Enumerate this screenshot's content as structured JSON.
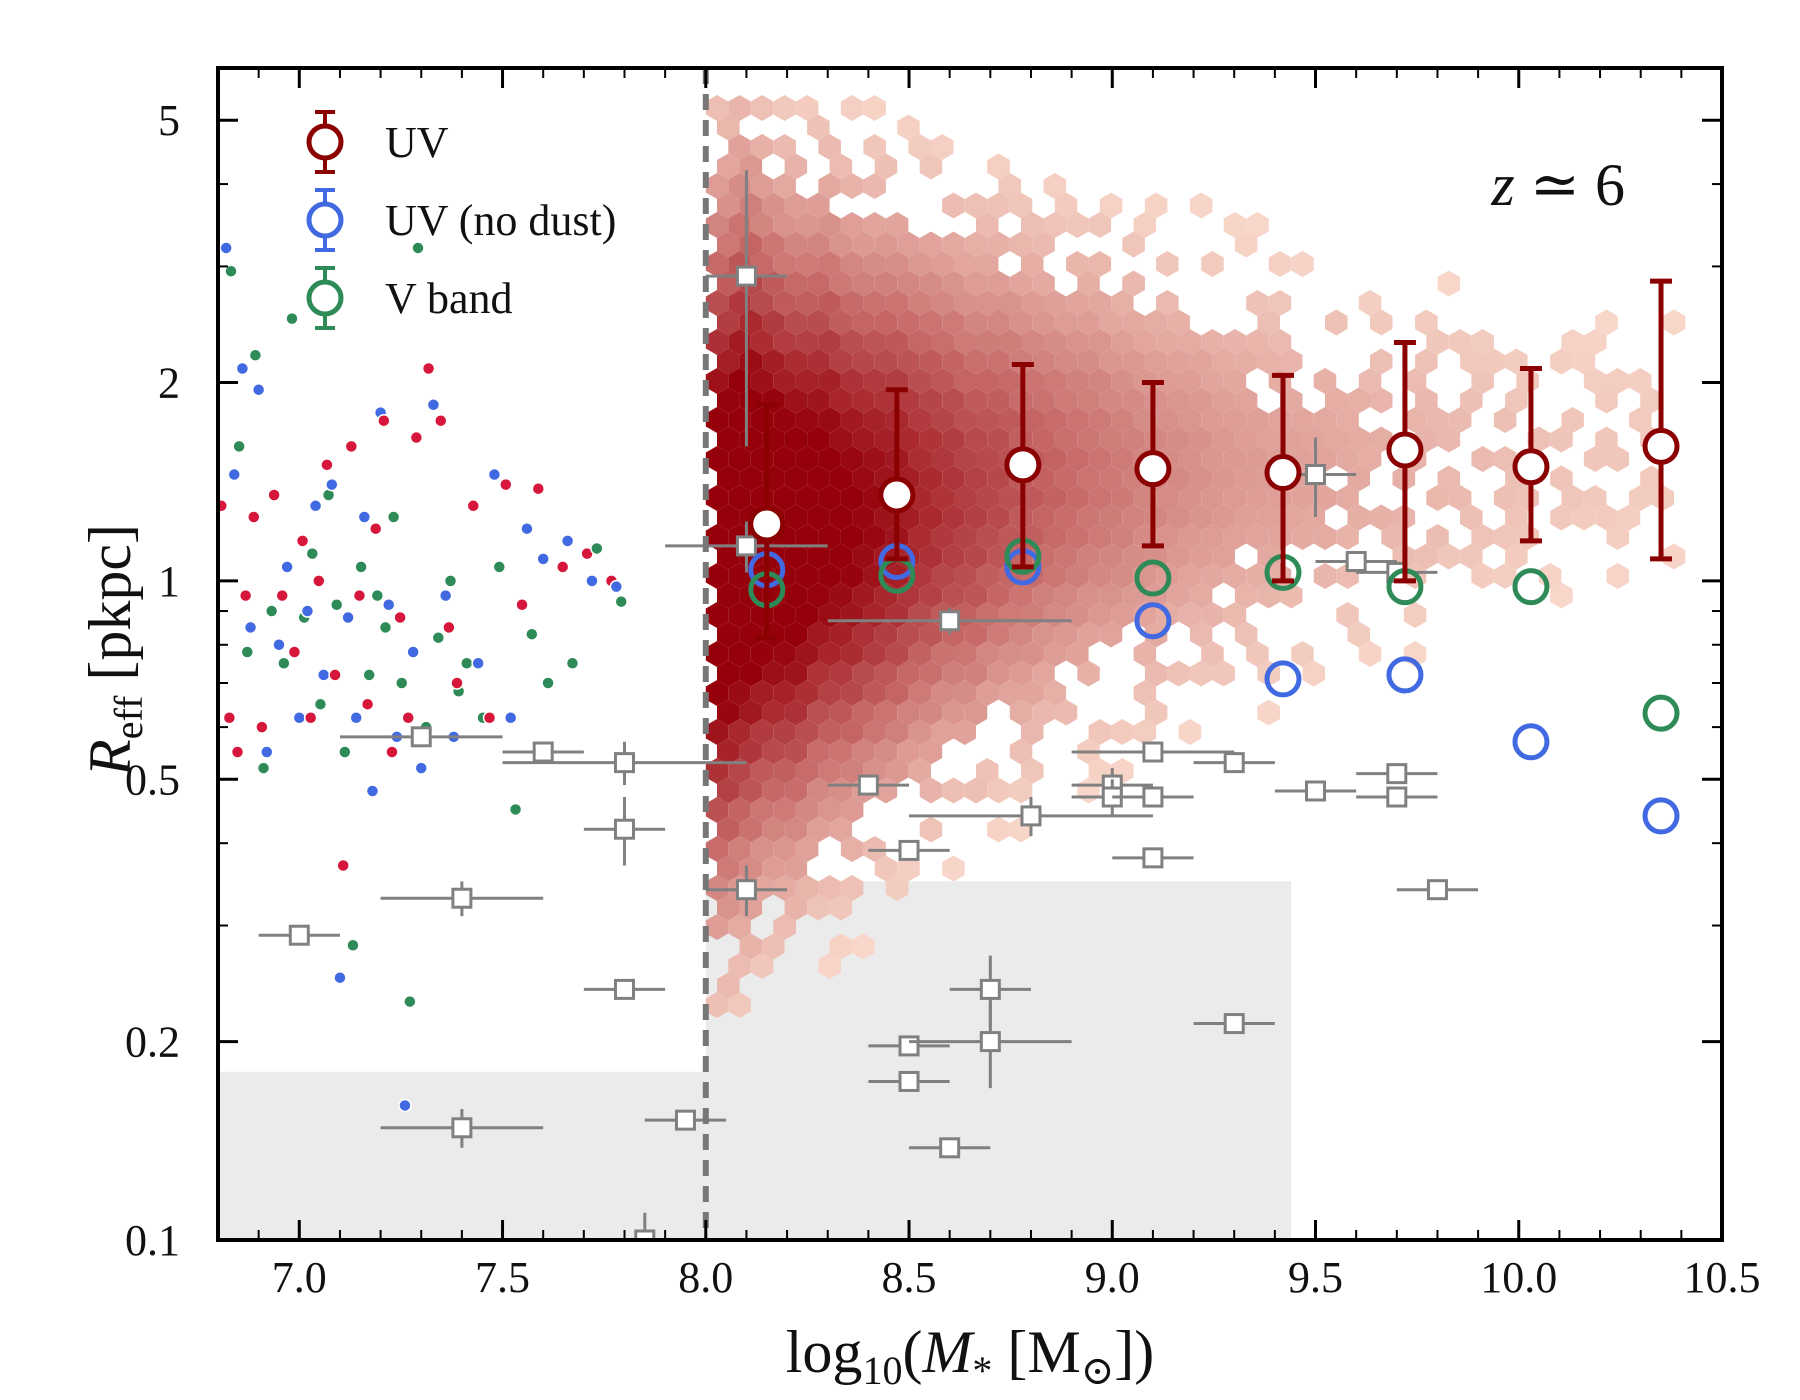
{
  "chart_data": {
    "type": "scatter",
    "xlabel_parts": {
      "pre": "log",
      "sub": "10",
      "mid": "(",
      "var": "M",
      "varsub": "*",
      "unit_open": " [M",
      "unit_sub": "⊙",
      "unit_close": "])"
    },
    "ylabel_parts": {
      "var": "R",
      "sub": "eff",
      "unit": " [pkpc]"
    },
    "annotation_parts": {
      "var": "z",
      "rest": " ≃ 6"
    },
    "xlim": [
      6.8,
      10.5
    ],
    "ylim": [
      0.1,
      6.0
    ],
    "y_scale": "log",
    "x_ticks": [
      "7.0",
      "7.5",
      "8.0",
      "8.5",
      "9.0",
      "9.5",
      "10.0",
      "10.5"
    ],
    "y_ticks": [
      "0.1",
      "0.2",
      "0.5",
      "1",
      "2",
      "5"
    ],
    "x_tick_values": [
      7.0,
      7.5,
      8.0,
      8.5,
      9.0,
      9.5,
      10.0,
      10.5
    ],
    "y_tick_values": [
      0.1,
      0.2,
      0.5,
      1,
      2,
      5
    ],
    "mass_cut": 8.0,
    "legend_position": "top-left",
    "colors": {
      "uv": "#8b0000",
      "uv_nodust": "#4169e1",
      "vband": "#2e8b57",
      "obs": "#808080",
      "shade": "#ebebeb",
      "hex": "#d7301f"
    },
    "series": [
      {
        "name": "UV",
        "x": [
          8.15,
          8.47,
          8.78,
          9.1,
          9.42,
          9.72,
          10.03,
          10.35
        ],
        "y": [
          1.22,
          1.35,
          1.5,
          1.48,
          1.46,
          1.58,
          1.49,
          1.6
        ],
        "yerr_low": [
          0.82,
          1.08,
          1.05,
          1.13,
          1.0,
          1.0,
          1.15,
          1.08
        ],
        "yerr_high": [
          1.85,
          1.95,
          2.13,
          2.0,
          2.05,
          2.3,
          2.1,
          2.85
        ]
      },
      {
        "name": "UV (no dust)",
        "x": [
          8.15,
          8.47,
          8.78,
          9.1,
          9.42,
          9.72,
          10.03,
          10.35
        ],
        "y": [
          1.04,
          1.07,
          1.05,
          0.87,
          0.71,
          0.72,
          0.57,
          0.44
        ]
      },
      {
        "name": "V band",
        "x": [
          8.15,
          8.47,
          8.78,
          9.1,
          9.42,
          9.72,
          10.03,
          10.35
        ],
        "y": [
          0.97,
          1.02,
          1.09,
          1.01,
          1.03,
          0.98,
          0.98,
          0.63
        ]
      }
    ],
    "shaded_regions": [
      {
        "x0": 6.8,
        "x1": 8.0,
        "y0": 0.1,
        "y1": 0.18
      },
      {
        "x0": 8.0,
        "x1": 9.44,
        "y0": 0.1,
        "y1": 0.35
      }
    ],
    "observations": [
      {
        "x": 7.0,
        "y": 0.29,
        "xerr": 0.1,
        "yerr": 0
      },
      {
        "x": 7.3,
        "y": 0.58,
        "xerr": 0.2,
        "yerr": 0
      },
      {
        "x": 7.4,
        "y": 0.33,
        "xerr": 0.2,
        "yerr": 0.02
      },
      {
        "x": 7.4,
        "y": 0.148,
        "xerr": 0.2,
        "yerr": 0.01
      },
      {
        "x": 7.6,
        "y": 0.55,
        "xerr": 0.1,
        "yerr": 0
      },
      {
        "x": 7.8,
        "y": 0.53,
        "xerr": 0.3,
        "yerr": 0.04
      },
      {
        "x": 7.8,
        "y": 0.42,
        "xerr": 0.1,
        "yerr": 0.05
      },
      {
        "x": 7.8,
        "y": 0.24,
        "xerr": 0.1,
        "yerr": 0
      },
      {
        "x": 7.95,
        "y": 0.152,
        "xerr": 0.1,
        "yerr": 0
      },
      {
        "x": 7.85,
        "y": 0.1,
        "xerr": 0.1,
        "yerr": 0.01
      },
      {
        "x": 8.1,
        "y": 2.9,
        "xerr": 0.1,
        "yerr": 1.3
      },
      {
        "x": 8.1,
        "y": 1.13,
        "xerr": 0.2,
        "yerr": 0.1
      },
      {
        "x": 8.1,
        "y": 0.34,
        "xerr": 0.1,
        "yerr": 0.03
      },
      {
        "x": 8.4,
        "y": 0.49,
        "xerr": 0.1,
        "yerr": 0
      },
      {
        "x": 8.5,
        "y": 0.39,
        "xerr": 0.1,
        "yerr": 0
      },
      {
        "x": 8.5,
        "y": 0.197,
        "xerr": 0.1,
        "yerr": 0
      },
      {
        "x": 8.5,
        "y": 0.174,
        "xerr": 0.1,
        "yerr": 0
      },
      {
        "x": 8.6,
        "y": 0.87,
        "xerr": 0.3,
        "yerr": 0.04
      },
      {
        "x": 8.6,
        "y": 0.138,
        "xerr": 0.1,
        "yerr": 0
      },
      {
        "x": 8.7,
        "y": 0.24,
        "xerr": 0.1,
        "yerr": 0.03
      },
      {
        "x": 8.7,
        "y": 0.2,
        "xerr": 0.2,
        "yerr": 0.03
      },
      {
        "x": 8.8,
        "y": 0.44,
        "xerr": 0.3,
        "yerr": 0.03
      },
      {
        "x": 9.0,
        "y": 0.49,
        "xerr": 0.1,
        "yerr": 0.03
      },
      {
        "x": 9.0,
        "y": 0.47,
        "xerr": 0.1,
        "yerr": 0.03
      },
      {
        "x": 9.1,
        "y": 0.55,
        "xerr": 0.2,
        "yerr": 0
      },
      {
        "x": 9.1,
        "y": 0.47,
        "xerr": 0.1,
        "yerr": 0
      },
      {
        "x": 9.1,
        "y": 0.38,
        "xerr": 0.1,
        "yerr": 0
      },
      {
        "x": 9.3,
        "y": 0.53,
        "xerr": 0.1,
        "yerr": 0
      },
      {
        "x": 9.3,
        "y": 0.213,
        "xerr": 0.1,
        "yerr": 0
      },
      {
        "x": 9.5,
        "y": 1.45,
        "xerr": 0.1,
        "yerr": 0.2
      },
      {
        "x": 9.5,
        "y": 0.48,
        "xerr": 0.1,
        "yerr": 0
      },
      {
        "x": 9.6,
        "y": 1.07,
        "xerr": 0.1,
        "yerr": 0
      },
      {
        "x": 9.7,
        "y": 1.03,
        "xerr": 0.1,
        "yerr": 0
      },
      {
        "x": 9.7,
        "y": 0.51,
        "xerr": 0.1,
        "yerr": 0
      },
      {
        "x": 9.7,
        "y": 0.47,
        "xerr": 0.1,
        "yerr": 0
      },
      {
        "x": 9.8,
        "y": 0.34,
        "xerr": 0.1,
        "yerr": 0
      }
    ],
    "low_mass_galaxies": {
      "x": [
        6.82,
        6.84,
        6.86,
        6.88,
        6.9,
        6.92,
        6.95,
        6.97,
        7.0,
        7.02,
        7.04,
        7.06,
        7.08,
        7.1,
        7.12,
        7.14,
        7.16,
        7.18,
        7.2,
        7.22,
        7.24,
        7.26,
        7.28,
        7.3,
        7.33,
        7.36,
        7.38,
        7.4,
        7.44,
        7.48,
        7.52,
        7.56,
        7.6,
        7.66,
        7.72,
        7.78
      ],
      "y_uv": [
        1.3,
        0.62,
        0.55,
        0.95,
        1.25,
        0.6,
        1.35,
        0.95,
        0.78,
        1.15,
        0.62,
        1.0,
        1.5,
        0.72,
        0.37,
        1.6,
        0.95,
        0.65,
        1.2,
        1.75,
        0.55,
        0.88,
        0.62,
        1.65,
        2.1,
        1.75,
        0.85,
        0.7,
        1.3,
        0.62,
        1.4,
        0.92,
        1.38,
        1.05,
        1.1,
        1.0
      ],
      "y_nodust": [
        3.2,
        1.45,
        2.1,
        0.85,
        1.95,
        0.55,
        0.8,
        1.05,
        0.62,
        0.9,
        1.3,
        0.72,
        1.4,
        0.25,
        0.88,
        0.62,
        1.25,
        0.48,
        1.8,
        0.92,
        0.58,
        0.16,
        0.78,
        0.52,
        1.85,
        0.95,
        0.58,
        0.33,
        0.75,
        1.45,
        0.62,
        1.2,
        1.08,
        1.15,
        1.0,
        0.98
      ],
      "y_vband": [
        2.95,
        1.6,
        0.78,
        2.2,
        0.52,
        0.9,
        0.75,
        2.5,
        0.88,
        1.1,
        0.65,
        1.35,
        0.92,
        0.55,
        0.28,
        1.05,
        0.72,
        0.95,
        0.85,
        1.25,
        0.7,
        0.23,
        3.2,
        0.6,
        0.82,
        1.0,
        0.68,
        0.75,
        0.62,
        1.05,
        0.45,
        0.83,
        0.7,
        0.75,
        1.12,
        0.93
      ]
    },
    "hex_density": {
      "x": [
        8.0,
        8.05,
        8.1,
        8.15,
        8.2,
        8.25,
        8.3,
        8.35,
        8.4,
        8.45,
        8.5,
        8.55,
        8.6,
        8.65,
        8.7,
        8.75,
        8.8,
        8.85,
        8.9,
        8.95,
        9.0,
        9.05,
        9.1,
        9.15,
        9.2,
        9.25,
        9.3,
        9.35,
        9.4,
        9.45,
        9.5,
        9.55,
        9.6,
        9.65,
        9.7,
        9.75,
        9.8,
        9.85,
        9.9,
        9.95,
        10.0,
        10.1,
        10.2,
        10.3
      ],
      "log_y_center": [
        0.05,
        0.04,
        0.08,
        0.08,
        0.07,
        0.08,
        0.1,
        0.09,
        0.1,
        0.11,
        0.12,
        0.12,
        0.13,
        0.12,
        0.14,
        0.15,
        0.14,
        0.15,
        0.15,
        0.16,
        0.15,
        0.16,
        0.15,
        0.16,
        0.17,
        0.16,
        0.17,
        0.17,
        0.16,
        0.17,
        0.17,
        0.18,
        0.18,
        0.17,
        0.18,
        0.18,
        0.18,
        0.19,
        0.18,
        0.19,
        0.18,
        0.19,
        0.19,
        0.2
      ],
      "log_y_spread": [
        0.28,
        0.34,
        0.34,
        0.32,
        0.31,
        0.3,
        0.3,
        0.29,
        0.28,
        0.28,
        0.27,
        0.27,
        0.26,
        0.26,
        0.25,
        0.25,
        0.25,
        0.24,
        0.24,
        0.24,
        0.23,
        0.23,
        0.23,
        0.22,
        0.22,
        0.22,
        0.21,
        0.21,
        0.21,
        0.2,
        0.2,
        0.2,
        0.2,
        0.19,
        0.19,
        0.19,
        0.19,
        0.18,
        0.18,
        0.18,
        0.18,
        0.17,
        0.17,
        0.17
      ],
      "peak_weight": [
        0.95,
        1.0,
        1.0,
        0.95,
        0.92,
        0.9,
        0.86,
        0.82,
        0.78,
        0.74,
        0.7,
        0.66,
        0.62,
        0.58,
        0.55,
        0.52,
        0.49,
        0.46,
        0.43,
        0.4,
        0.38,
        0.36,
        0.34,
        0.32,
        0.3,
        0.28,
        0.27,
        0.26,
        0.25,
        0.24,
        0.23,
        0.22,
        0.21,
        0.2,
        0.19,
        0.18,
        0.17,
        0.16,
        0.15,
        0.14,
        0.13,
        0.12,
        0.11,
        0.1
      ]
    },
    "legend": [
      {
        "label": "UV"
      },
      {
        "label": "UV (no dust)"
      },
      {
        "label": "V band"
      }
    ]
  }
}
